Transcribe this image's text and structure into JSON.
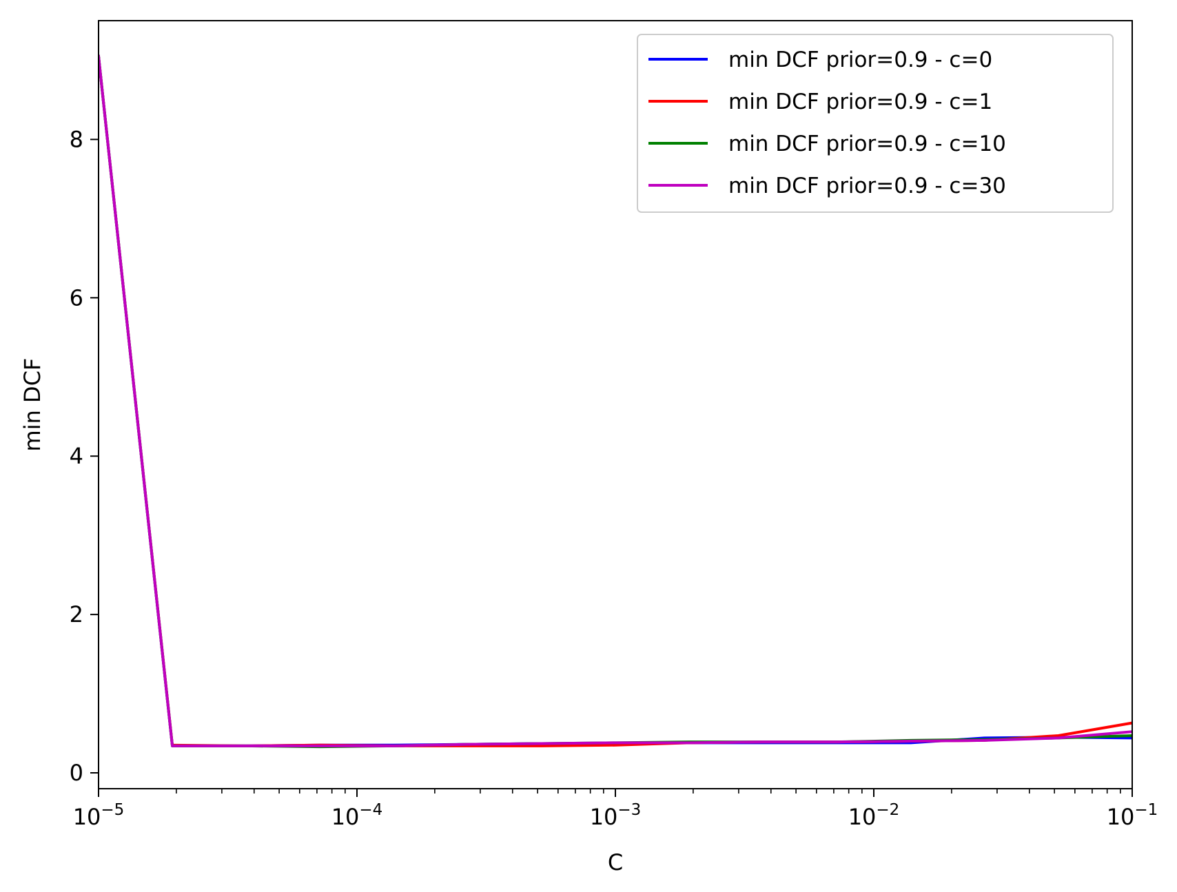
{
  "chart_data": {
    "type": "line",
    "title": "",
    "xlabel": "C",
    "ylabel": "min DCF",
    "xscale": "log",
    "xlim": [
      1e-05,
      0.1
    ],
    "ylim": [
      -0.2,
      9.5
    ],
    "xticks": [
      {
        "value": 1e-05,
        "base": "10",
        "exp": "−5"
      },
      {
        "value": 0.0001,
        "base": "10",
        "exp": "−4"
      },
      {
        "value": 0.001,
        "base": "10",
        "exp": "−3"
      },
      {
        "value": 0.01,
        "base": "10",
        "exp": "−2"
      },
      {
        "value": 0.1,
        "base": "10",
        "exp": "−1"
      }
    ],
    "yticks": [
      {
        "value": 0,
        "label": "0"
      },
      {
        "value": 2,
        "label": "2"
      },
      {
        "value": 4,
        "label": "4"
      },
      {
        "value": 6,
        "label": "6"
      },
      {
        "value": 8,
        "label": "8"
      }
    ],
    "grid": false,
    "legend_position": "top-right",
    "x": [
      1e-05,
      1.93e-05,
      3.73e-05,
      7.2e-05,
      0.000139,
      0.000268,
      0.000518,
      0.001,
      0.00193,
      0.00373,
      0.0072,
      0.0139,
      0.0268,
      0.0518,
      0.1
    ],
    "series": [
      {
        "name": "min DCF prior=0.9 - c=0",
        "color": "#0000ff",
        "values": [
          9.05,
          0.34,
          0.34,
          0.35,
          0.35,
          0.36,
          0.37,
          0.37,
          0.38,
          0.38,
          0.38,
          0.38,
          0.44,
          0.45,
          0.44
        ]
      },
      {
        "name": "min DCF prior=0.9 - c=1",
        "color": "#ff0000",
        "values": [
          9.05,
          0.35,
          0.34,
          0.35,
          0.34,
          0.34,
          0.34,
          0.35,
          0.38,
          0.39,
          0.39,
          0.4,
          0.41,
          0.47,
          0.63
        ]
      },
      {
        "name": "min DCF prior=0.9 - c=10",
        "color": "#008000",
        "values": [
          9.05,
          0.34,
          0.34,
          0.33,
          0.34,
          0.36,
          0.37,
          0.38,
          0.39,
          0.39,
          0.39,
          0.41,
          0.42,
          0.44,
          0.47
        ]
      },
      {
        "name": "min DCF prior=0.9 - c=30",
        "color": "#bf00bf",
        "values": [
          9.05,
          0.34,
          0.34,
          0.34,
          0.34,
          0.36,
          0.37,
          0.38,
          0.38,
          0.39,
          0.39,
          0.4,
          0.41,
          0.44,
          0.52
        ]
      }
    ]
  }
}
